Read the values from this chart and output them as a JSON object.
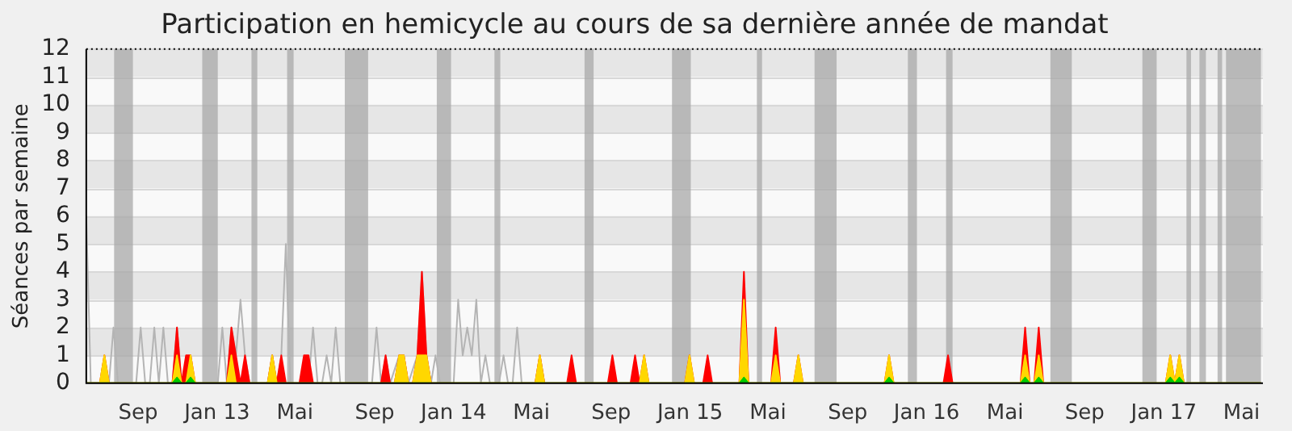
{
  "chart_data": {
    "type": "area",
    "title": "Participation en hemicycle au cours de sa dernière année de mandat",
    "ylabel": "Séances par semaine",
    "xlim": [
      "2012-06-13",
      "2017-06-03"
    ],
    "ylim": [
      0,
      12
    ],
    "yticks": [
      0,
      1,
      2,
      3,
      4,
      5,
      6,
      7,
      8,
      9,
      10,
      11,
      12
    ],
    "xticks": [
      {
        "value": "2012-09-01",
        "label": "Sep"
      },
      {
        "value": "2013-01-01",
        "label": "Jan 13"
      },
      {
        "value": "2013-05-01",
        "label": "Mai"
      },
      {
        "value": "2013-09-01",
        "label": "Sep"
      },
      {
        "value": "2014-01-01",
        "label": "Jan 14"
      },
      {
        "value": "2014-05-01",
        "label": "Mai"
      },
      {
        "value": "2014-09-01",
        "label": "Sep"
      },
      {
        "value": "2015-01-01",
        "label": "Jan 15"
      },
      {
        "value": "2015-05-01",
        "label": "Mai"
      },
      {
        "value": "2015-09-01",
        "label": "Sep"
      },
      {
        "value": "2016-01-01",
        "label": "Jan 16"
      },
      {
        "value": "2016-05-01",
        "label": "Mai"
      },
      {
        "value": "2016-09-01",
        "label": "Sep"
      },
      {
        "value": "2017-01-01",
        "label": "Jan 17"
      },
      {
        "value": "2017-05-01",
        "label": "Mai"
      }
    ],
    "grid": "y",
    "marker": "none",
    "legend": false,
    "bands": [
      {
        "axis": "x",
        "from": "2012-07-26",
        "to": "2012-08-24",
        "color": "#a8a8a8"
      },
      {
        "axis": "x",
        "from": "2012-12-09",
        "to": "2013-01-02",
        "color": "#a8a8a8"
      },
      {
        "axis": "x",
        "from": "2013-02-23",
        "to": "2013-03-04",
        "color": "#a8a8a8"
      },
      {
        "axis": "x",
        "from": "2013-04-19",
        "to": "2013-04-29",
        "color": "#a8a8a8"
      },
      {
        "axis": "x",
        "from": "2013-07-17",
        "to": "2013-08-22",
        "color": "#a8a8a8"
      },
      {
        "axis": "x",
        "from": "2013-12-06",
        "to": "2013-12-28",
        "color": "#a8a8a8"
      },
      {
        "axis": "x",
        "from": "2014-03-05",
        "to": "2014-03-14",
        "color": "#a8a8a8"
      },
      {
        "axis": "x",
        "from": "2014-07-22",
        "to": "2014-08-05",
        "color": "#a8a8a8"
      },
      {
        "axis": "x",
        "from": "2014-12-04",
        "to": "2015-01-02",
        "color": "#a8a8a8"
      },
      {
        "axis": "x",
        "from": "2015-04-14",
        "to": "2015-04-22",
        "color": "#a8a8a8"
      },
      {
        "axis": "x",
        "from": "2015-07-12",
        "to": "2015-08-15",
        "color": "#a8a8a8"
      },
      {
        "axis": "x",
        "from": "2015-12-03",
        "to": "2015-12-17",
        "color": "#a8a8a8"
      },
      {
        "axis": "x",
        "from": "2016-01-31",
        "to": "2016-02-10",
        "color": "#a8a8a8"
      },
      {
        "axis": "x",
        "from": "2016-07-10",
        "to": "2016-08-12",
        "color": "#a8a8a8"
      },
      {
        "axis": "x",
        "from": "2016-11-29",
        "to": "2016-12-21",
        "color": "#a8a8a8"
      },
      {
        "axis": "x",
        "from": "2017-02-05",
        "to": "2017-02-12",
        "color": "#a8a8a8"
      },
      {
        "axis": "x",
        "from": "2017-02-25",
        "to": "2017-03-07",
        "color": "#a8a8a8"
      },
      {
        "axis": "x",
        "from": "2017-03-25",
        "to": "2017-04-01",
        "color": "#a8a8a8"
      },
      {
        "axis": "x",
        "from": "2017-04-07",
        "to": "2017-05-31",
        "color": "#a8a8a8"
      }
    ],
    "series": [
      {
        "type": "line",
        "color": "#b4b4b4",
        "x": [
          "2012-06-13",
          "2012-06-20",
          "2012-07-18",
          "2012-07-25",
          "2012-08-01",
          "2012-08-29",
          "2012-09-05",
          "2012-09-12",
          "2012-09-19",
          "2012-09-26",
          "2012-10-03",
          "2012-10-10",
          "2012-10-17",
          "2012-10-24",
          "2012-10-31",
          "2012-11-07",
          "2012-11-14",
          "2012-11-21",
          "2012-11-28",
          "2013-01-02",
          "2013-01-09",
          "2013-01-16",
          "2013-01-23",
          "2013-01-30",
          "2013-02-06",
          "2013-02-13",
          "2013-02-20",
          "2013-03-20",
          "2013-03-27",
          "2013-04-03",
          "2013-04-10",
          "2013-04-17",
          "2013-04-24",
          "2013-05-22",
          "2013-05-29",
          "2013-06-05",
          "2013-06-12",
          "2013-06-19",
          "2013-06-26",
          "2013-07-03",
          "2013-07-10",
          "2013-08-28",
          "2013-09-04",
          "2013-09-11",
          "2013-09-18",
          "2013-09-25",
          "2013-10-09",
          "2013-10-16",
          "2013-10-23",
          "2013-11-06",
          "2013-11-13",
          "2013-11-20",
          "2013-11-27",
          "2013-12-04",
          "2013-12-11",
          "2014-01-01",
          "2014-01-08",
          "2014-01-15",
          "2014-01-22",
          "2014-01-29",
          "2014-02-05",
          "2014-02-12",
          "2014-02-19",
          "2014-02-26",
          "2014-03-12",
          "2014-03-19",
          "2014-03-26",
          "2014-04-02",
          "2014-04-09",
          "2014-04-16",
          "2014-05-07",
          "2014-05-14",
          "2014-05-21"
        ],
        "values": [
          6,
          0,
          0,
          2,
          0,
          0,
          2,
          0,
          0,
          2,
          0,
          2,
          0,
          0,
          2,
          0,
          0,
          null,
          0,
          0,
          2,
          0,
          2,
          1,
          3,
          1,
          0,
          0,
          1,
          0,
          1,
          5,
          0,
          0,
          2,
          0,
          0,
          1,
          0,
          2,
          0,
          0,
          2,
          0,
          1,
          0,
          1,
          1,
          0,
          1,
          4,
          1,
          0,
          1,
          0,
          0,
          3,
          1,
          2,
          1,
          3,
          0,
          1,
          0,
          0,
          1,
          0,
          0,
          2,
          0,
          0,
          1,
          0
        ]
      },
      {
        "color": "#ff0000",
        "x": [
          "2012-06-13",
          "2012-07-04",
          "2012-07-11",
          "2012-07-18",
          "2012-10-24",
          "2012-10-31",
          "2012-11-07",
          "2012-11-14",
          "2012-11-21",
          "2012-11-28",
          "2013-01-16",
          "2013-01-23",
          "2013-01-30",
          "2013-02-06",
          "2013-02-13",
          "2013-02-20",
          "2013-03-20",
          "2013-03-27",
          "2013-04-03",
          "2013-04-10",
          "2013-04-17",
          "2013-05-08",
          "2013-05-15",
          "2013-05-22",
          "2013-05-29",
          "2013-09-11",
          "2013-09-18",
          "2013-09-25",
          "2013-10-02",
          "2013-10-09",
          "2013-10-16",
          "2013-10-23",
          "2013-10-30",
          "2013-11-06",
          "2013-11-13",
          "2013-11-20",
          "2013-11-27",
          "2014-05-07",
          "2014-05-14",
          "2014-05-21",
          "2014-06-25",
          "2014-07-02",
          "2014-07-09",
          "2014-08-27",
          "2014-09-03",
          "2014-09-10",
          "2014-10-01",
          "2014-10-08",
          "2014-10-15",
          "2014-10-22",
          "2014-10-29",
          "2014-12-24",
          "2014-12-31",
          "2015-01-07",
          "2015-01-21",
          "2015-01-28",
          "2015-02-04",
          "2015-03-18",
          "2015-03-25",
          "2015-04-01",
          "2015-05-06",
          "2015-05-13",
          "2015-05-20",
          "2015-06-10",
          "2015-06-17",
          "2015-06-24",
          "2015-10-28",
          "2015-11-04",
          "2015-11-11",
          "2016-01-27",
          "2016-02-03",
          "2016-02-10",
          "2016-05-25",
          "2016-06-01",
          "2016-06-08",
          "2016-06-15",
          "2016-06-22",
          "2016-06-29",
          "2017-01-04",
          "2017-01-11",
          "2017-01-18",
          "2017-01-25",
          "2017-02-01",
          "2017-05-31"
        ],
        "values": [
          0,
          0,
          1,
          0,
          0,
          2,
          0,
          1,
          1,
          0,
          0,
          2,
          1,
          0,
          1,
          0,
          0,
          1,
          0,
          1,
          0,
          0,
          1,
          1,
          0,
          0,
          1,
          0,
          0,
          1,
          1,
          0,
          0,
          1,
          4,
          1,
          0,
          0,
          1,
          0,
          0,
          1,
          0,
          0,
          1,
          0,
          0,
          1,
          0,
          1,
          0,
          0,
          1,
          0,
          0,
          1,
          0,
          0,
          4,
          0,
          0,
          2,
          0,
          0,
          1,
          0,
          0,
          1,
          0,
          0,
          1,
          0,
          0,
          2,
          0,
          0,
          2,
          0,
          0,
          1,
          0,
          1,
          0,
          0
        ]
      },
      {
        "color": "#ffd700",
        "x": [
          "2012-06-13",
          "2012-07-04",
          "2012-07-11",
          "2012-07-18",
          "2012-10-24",
          "2012-10-31",
          "2012-11-07",
          "2012-11-14",
          "2012-11-21",
          "2012-11-28",
          "2013-01-16",
          "2013-01-23",
          "2013-01-30",
          "2013-03-20",
          "2013-03-27",
          "2013-04-03",
          "2013-10-02",
          "2013-10-09",
          "2013-10-16",
          "2013-10-23",
          "2013-10-30",
          "2013-11-06",
          "2013-11-13",
          "2013-11-20",
          "2013-11-27",
          "2014-05-07",
          "2014-05-14",
          "2014-05-21",
          "2014-10-15",
          "2014-10-22",
          "2014-10-29",
          "2014-12-24",
          "2014-12-31",
          "2015-01-07",
          "2015-03-18",
          "2015-03-25",
          "2015-04-01",
          "2015-05-06",
          "2015-05-13",
          "2015-05-20",
          "2015-06-10",
          "2015-06-17",
          "2015-06-24",
          "2015-10-28",
          "2015-11-04",
          "2015-11-11",
          "2016-05-25",
          "2016-06-01",
          "2016-06-08",
          "2016-06-15",
          "2016-06-22",
          "2016-06-29",
          "2017-01-04",
          "2017-01-11",
          "2017-01-18",
          "2017-01-25",
          "2017-02-01",
          "2017-05-31"
        ],
        "values": [
          0,
          0,
          1,
          0,
          0,
          1,
          0,
          0,
          1,
          0,
          0,
          1,
          0,
          0,
          1,
          0,
          0,
          1,
          1,
          0,
          0,
          1,
          1,
          1,
          0,
          0,
          1,
          0,
          0,
          1,
          0,
          0,
          1,
          0,
          0,
          3,
          0,
          0,
          1,
          0,
          0,
          1,
          0,
          0,
          1,
          0,
          0,
          1,
          0,
          0,
          1,
          0,
          0,
          1,
          0,
          1,
          0,
          0
        ]
      },
      {
        "color": "#00cc00",
        "x": [
          "2012-06-13",
          "2012-10-24",
          "2012-10-31",
          "2012-11-07",
          "2012-11-14",
          "2012-11-21",
          "2012-11-28",
          "2015-03-18",
          "2015-03-25",
          "2015-04-01",
          "2015-10-28",
          "2015-11-04",
          "2015-11-11",
          "2016-05-25",
          "2016-06-01",
          "2016-06-08",
          "2016-06-15",
          "2016-06-22",
          "2016-06-29",
          "2017-01-04",
          "2017-01-11",
          "2017-01-18",
          "2017-01-25",
          "2017-02-01",
          "2017-05-31"
        ],
        "values": [
          0,
          0,
          0.2,
          0,
          0,
          0.2,
          0,
          0,
          0.2,
          0,
          0,
          0.2,
          0,
          0,
          0.2,
          0,
          0,
          0.2,
          0,
          0,
          0.2,
          0,
          0.2,
          0,
          0
        ]
      }
    ]
  }
}
